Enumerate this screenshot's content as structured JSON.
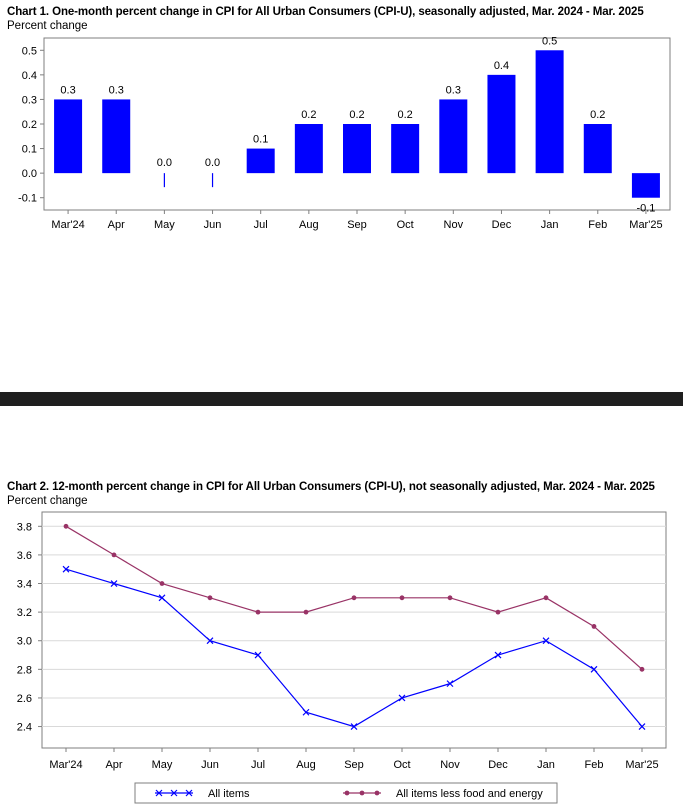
{
  "chart_data": [
    {
      "type": "bar",
      "title": "Chart 1. One-month percent change in CPI for All Urban Consumers (CPI-U), seasonally adjusted, Mar. 2024 - Mar. 2025",
      "ylabel": "Percent change",
      "xlabel": "",
      "categories": [
        "Mar'24",
        "Apr",
        "May",
        "Jun",
        "Jul",
        "Aug",
        "Sep",
        "Oct",
        "Nov",
        "Dec",
        "Jan",
        "Feb",
        "Mar'25"
      ],
      "values": [
        0.3,
        0.3,
        0.0,
        0.0,
        0.1,
        0.2,
        0.2,
        0.2,
        0.3,
        0.4,
        0.5,
        0.2,
        -0.1
      ],
      "data_labels": [
        "0.3",
        "0.3",
        "0.0",
        "0.0",
        "0.1",
        "0.2",
        "0.2",
        "0.2",
        "0.3",
        "0.4",
        "0.5",
        "0.2",
        "-0.1"
      ],
      "ylim": [
        -0.15,
        0.55
      ],
      "yticks": [
        "0.5",
        "0.4",
        "0.3",
        "0.2",
        "0.1",
        "0.0",
        "-0.1"
      ],
      "ytick_values": [
        0.5,
        0.4,
        0.3,
        0.2,
        0.1,
        0.0,
        -0.1
      ],
      "bar_color": "#0000ff",
      "grid": false,
      "legend": "none"
    },
    {
      "type": "line",
      "title": "Chart 2. 12-month percent change in CPI for All Urban Consumers (CPI-U), not seasonally adjusted, Mar. 2024 - Mar. 2025",
      "ylabel": "Percent change",
      "xlabel": "",
      "categories": [
        "Mar'24",
        "Apr",
        "May",
        "Jun",
        "Jul",
        "Aug",
        "Sep",
        "Oct",
        "Nov",
        "Dec",
        "Jan",
        "Feb",
        "Mar'25"
      ],
      "series": [
        {
          "name": "All items",
          "values": [
            3.5,
            3.4,
            3.3,
            3.0,
            2.9,
            2.5,
            2.4,
            2.6,
            2.7,
            2.9,
            3.0,
            2.8,
            2.4
          ],
          "color": "#0000ff",
          "marker": "x"
        },
        {
          "name": "All items less food and energy",
          "values": [
            3.8,
            3.6,
            3.4,
            3.3,
            3.2,
            3.2,
            3.3,
            3.3,
            3.3,
            3.2,
            3.3,
            3.1,
            2.8
          ],
          "color": "#993366",
          "marker": "circle"
        }
      ],
      "ylim": [
        2.25,
        3.9
      ],
      "yticks": [
        "3.8",
        "3.6",
        "3.4",
        "3.2",
        "3.0",
        "2.8",
        "2.6",
        "2.4"
      ],
      "ytick_values": [
        3.8,
        3.6,
        3.4,
        3.2,
        3.0,
        2.8,
        2.6,
        2.4
      ],
      "grid": true,
      "legend": "bottom"
    }
  ]
}
